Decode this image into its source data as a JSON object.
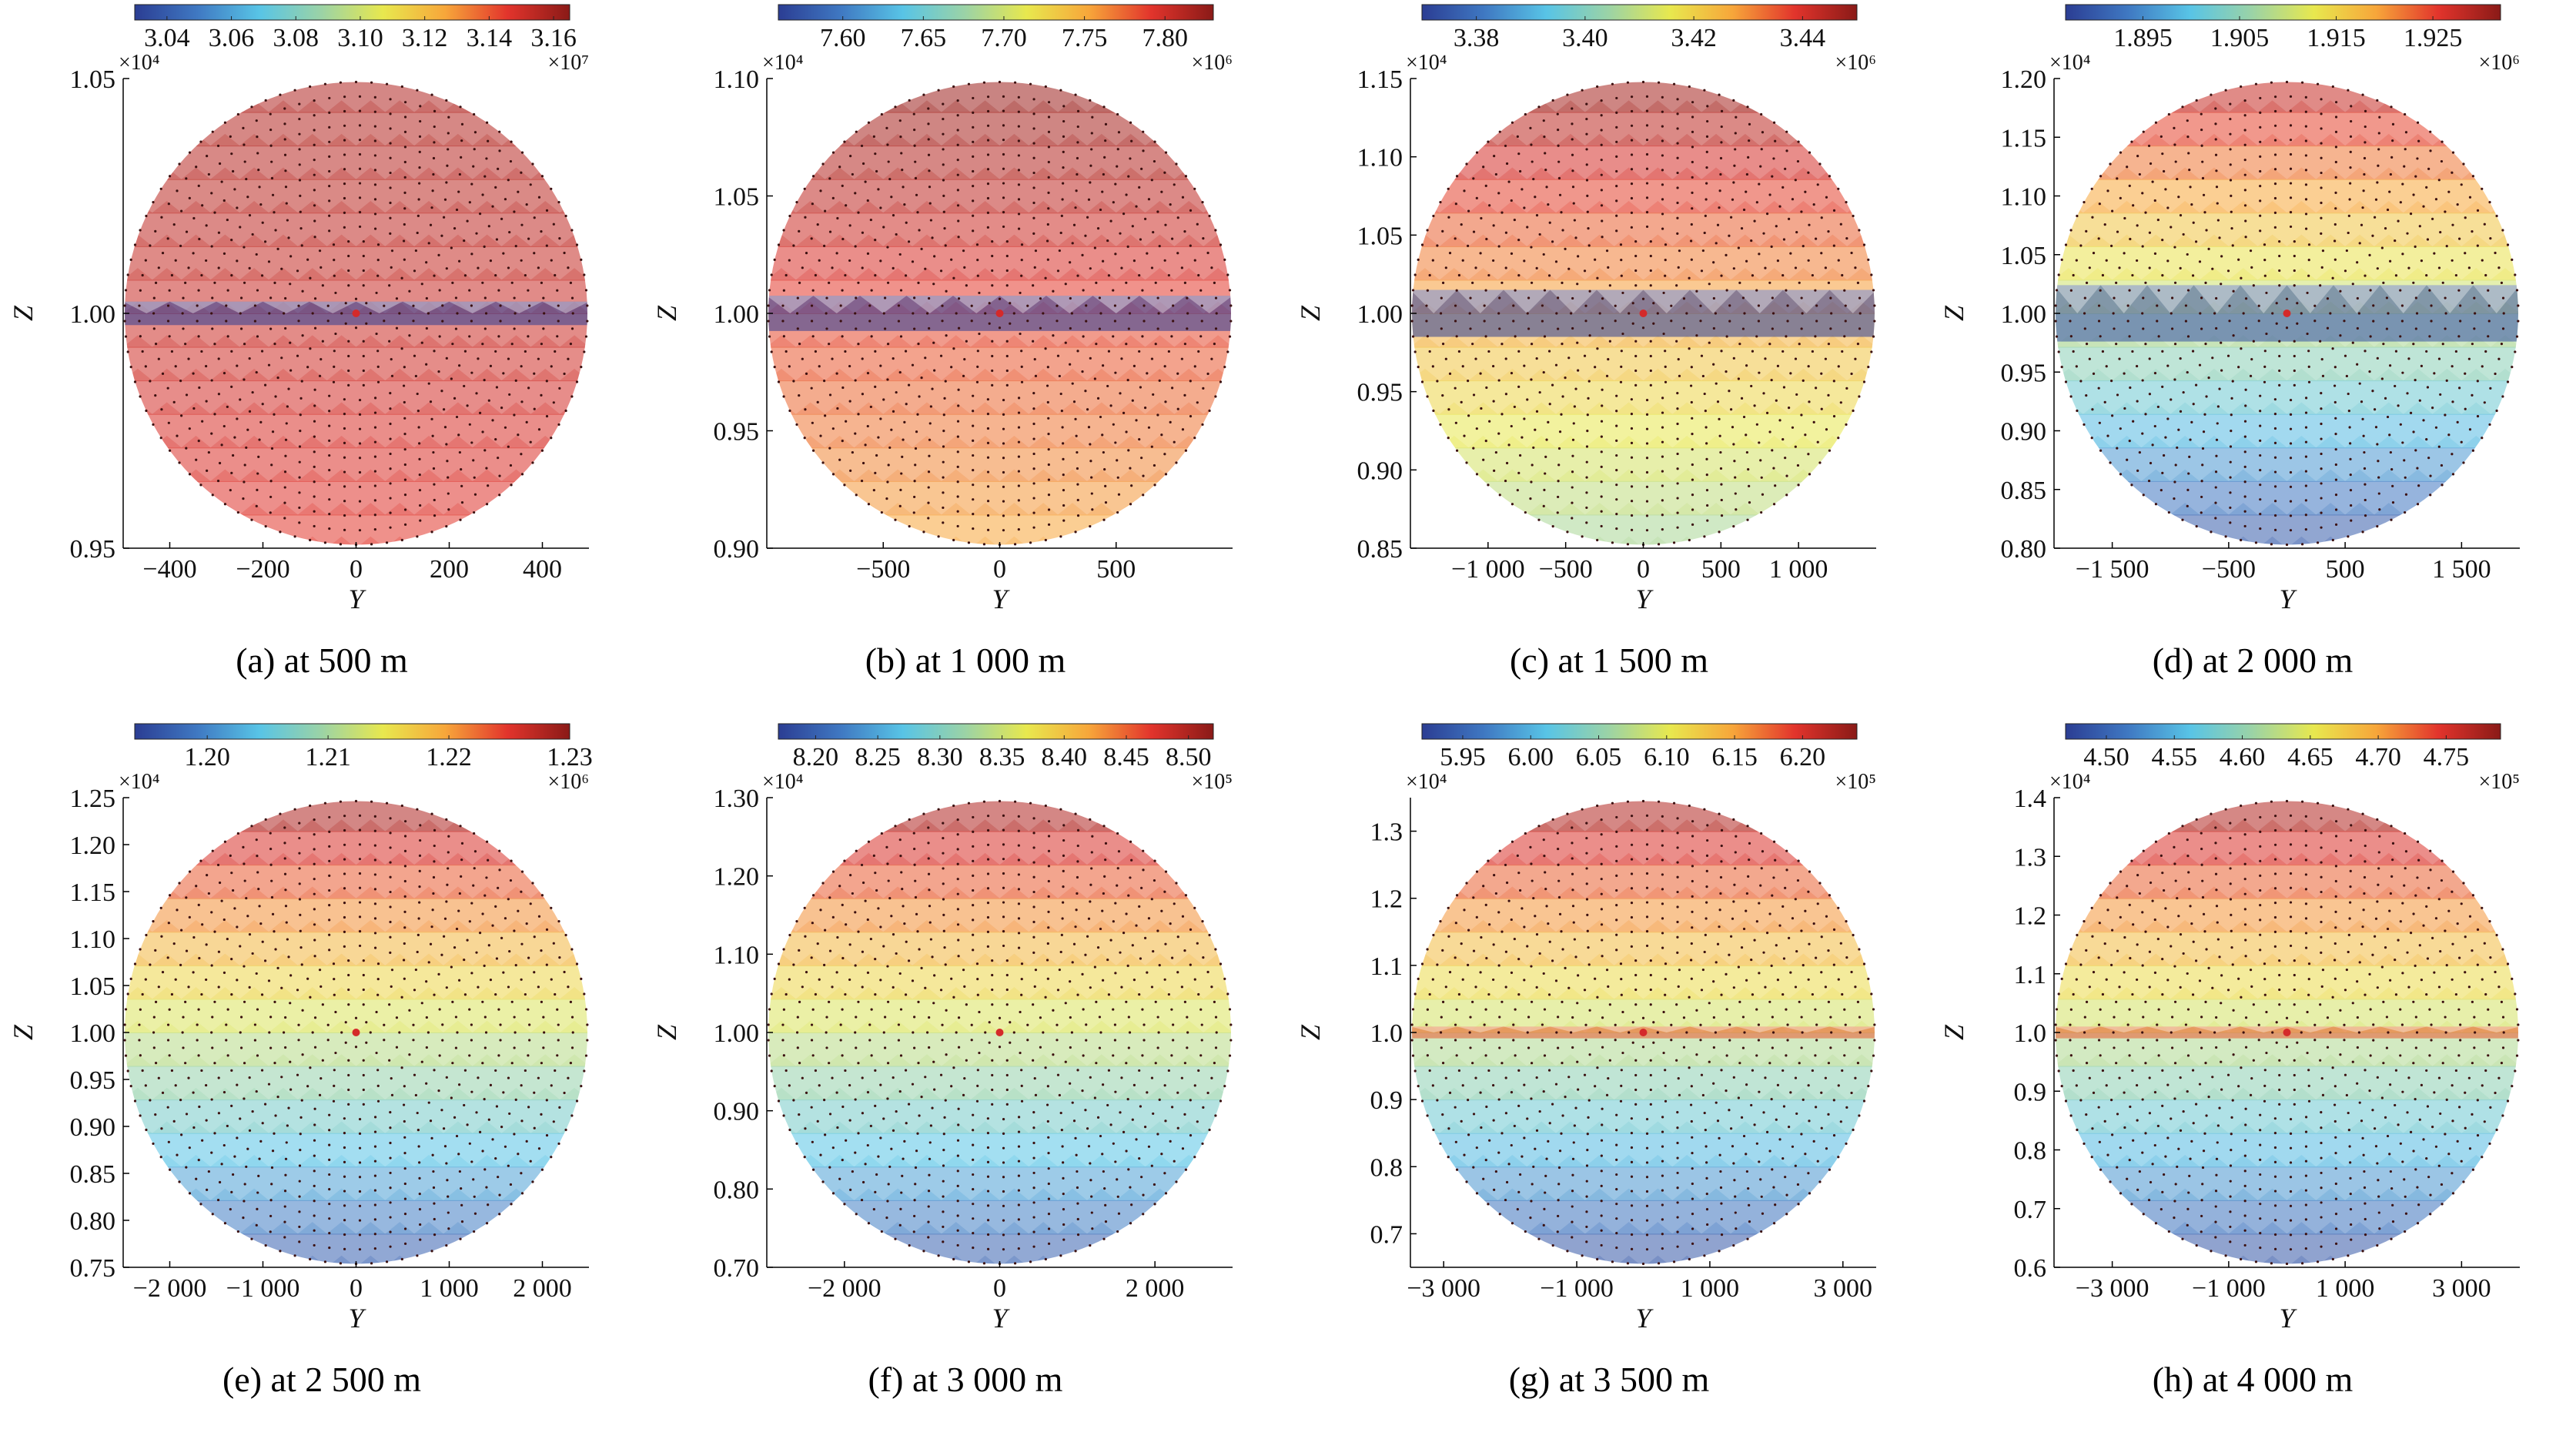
{
  "figure": {
    "colormap": [
      "#2b3d93",
      "#3f78c2",
      "#58c4e6",
      "#9bd3a6",
      "#e8e84e",
      "#f7a63a",
      "#e2342c",
      "#8a1a17"
    ],
    "panel_outline_color": "#000000",
    "node_color": "#3b1010",
    "center_marker_color": "#d42a2a"
  },
  "chart_data": [
    {
      "type": "heatmap",
      "caption": "(a) at 500 m",
      "xlabel": "Y",
      "ylabel": "Z",
      "xlim": [
        -500,
        500
      ],
      "ylim": [
        0.95,
        1.05
      ],
      "x_ticks": [
        -400,
        -200,
        0,
        200,
        400
      ],
      "x_tick_labels": [
        "−400",
        "−200",
        "0",
        "200",
        "400"
      ],
      "y_ticks": [
        0.95,
        1.0,
        1.05
      ],
      "y_tick_labels": [
        "0.95",
        "1.00",
        "1.05"
      ],
      "y_multiplier": "×10⁴",
      "colorbar": {
        "range": [
          3.03,
          3.165
        ],
        "ticks": [
          3.04,
          3.06,
          3.08,
          3.1,
          3.12,
          3.14,
          3.16
        ],
        "tick_labels": [
          "3.04",
          "3.06",
          "3.08",
          "3.10",
          "3.12",
          "3.14",
          "3.16"
        ],
        "multiplier": "×10⁷"
      },
      "field": {
        "top": 3.157,
        "bottom": 3.145,
        "band_halfwidth": 0.05,
        "band_value": 3.03
      },
      "center": [
        0,
        1.0
      ]
    },
    {
      "type": "heatmap",
      "caption": "(b) at 1 000 m",
      "xlabel": "Y",
      "ylabel": "Z",
      "xlim": [
        -1000,
        1000
      ],
      "ylim": [
        0.9,
        1.1
      ],
      "x_ticks": [
        -500,
        0,
        500
      ],
      "x_tick_labels": [
        "−500",
        "0",
        "500"
      ],
      "y_ticks": [
        0.9,
        0.95,
        1.0,
        1.05,
        1.1
      ],
      "y_tick_labels": [
        "0.90",
        "0.95",
        "1.00",
        "1.05",
        "1.10"
      ],
      "y_multiplier": "×10⁴",
      "colorbar": {
        "range": [
          7.56,
          7.83
        ],
        "ticks": [
          7.6,
          7.65,
          7.7,
          7.75,
          7.8
        ],
        "tick_labels": [
          "7.60",
          "7.65",
          "7.70",
          "7.75",
          "7.80"
        ],
        "multiplier": "×10⁶"
      },
      "field": {
        "top": 7.825,
        "bottom": 7.75,
        "band_halfwidth": 0.075,
        "band_value": 7.56
      },
      "center": [
        0,
        1.0
      ]
    },
    {
      "type": "heatmap",
      "caption": "(c) at 1 500 m",
      "xlabel": "Y",
      "ylabel": "Z",
      "xlim": [
        -1500,
        1500
      ],
      "ylim": [
        0.85,
        1.15
      ],
      "x_ticks": [
        -1000,
        -500,
        0,
        500,
        1000
      ],
      "x_tick_labels": [
        "−1 000",
        "−500",
        "0",
        "500",
        "1 000"
      ],
      "y_ticks": [
        0.85,
        0.9,
        0.95,
        1.0,
        1.05,
        1.1,
        1.15
      ],
      "y_tick_labels": [
        "0.85",
        "0.90",
        "0.95",
        "1.00",
        "1.05",
        "1.10",
        "1.15"
      ],
      "y_multiplier": "×10⁴",
      "colorbar": {
        "range": [
          3.37,
          3.45
        ],
        "ticks": [
          3.38,
          3.4,
          3.42,
          3.44
        ],
        "tick_labels": [
          "3.38",
          "3.40",
          "3.42",
          "3.44"
        ],
        "multiplier": "×10⁶"
      },
      "field": {
        "top": 3.448,
        "bottom": 3.405,
        "band_halfwidth": 0.1,
        "band_value": 3.37
      },
      "center": [
        0,
        1.0
      ]
    },
    {
      "type": "heatmap",
      "caption": "(d) at 2 000 m",
      "xlabel": "Y",
      "ylabel": "Z",
      "xlim": [
        -2000,
        2000
      ],
      "ylim": [
        0.8,
        1.2
      ],
      "x_ticks": [
        -1500,
        -500,
        500,
        1500
      ],
      "x_tick_labels": [
        "−1 500",
        "−500",
        "500",
        "1 500"
      ],
      "y_ticks": [
        0.8,
        0.85,
        0.9,
        0.95,
        1.0,
        1.05,
        1.1,
        1.15,
        1.2
      ],
      "y_tick_labels": [
        "0.80",
        "0.85",
        "0.90",
        "0.95",
        "1.00",
        "1.05",
        "1.10",
        "1.15",
        "1.20"
      ],
      "y_multiplier": "×10⁴",
      "colorbar": {
        "range": [
          1.887,
          1.932
        ],
        "ticks": [
          1.895,
          1.905,
          1.915,
          1.925
        ],
        "tick_labels": [
          "1.895",
          "1.905",
          "1.915",
          "1.925"
        ],
        "multiplier": "×10⁶"
      },
      "field": {
        "top": 1.929,
        "bottom": 1.889,
        "band_halfwidth": 0.12,
        "band_value": 1.889
      },
      "center": [
        0,
        1.0
      ]
    },
    {
      "type": "heatmap",
      "caption": "(e) at 2 500 m",
      "xlabel": "Y",
      "ylabel": "Z",
      "xlim": [
        -2500,
        2500
      ],
      "ylim": [
        0.75,
        1.25
      ],
      "x_ticks": [
        -2000,
        -1000,
        0,
        1000,
        2000
      ],
      "x_tick_labels": [
        "−2 000",
        "−1 000",
        "0",
        "1 000",
        "2 000"
      ],
      "y_ticks": [
        0.75,
        0.8,
        0.85,
        0.9,
        0.95,
        1.0,
        1.05,
        1.1,
        1.15,
        1.2,
        1.25
      ],
      "y_tick_labels": [
        "0.75",
        "0.80",
        "0.85",
        "0.90",
        "0.95",
        "1.00",
        "1.05",
        "1.10",
        "1.15",
        "1.20",
        "1.25"
      ],
      "y_multiplier": "×10⁴",
      "colorbar": {
        "range": [
          1.194,
          1.23
        ],
        "ticks": [
          1.2,
          1.21,
          1.22,
          1.23
        ],
        "tick_labels": [
          "1.20",
          "1.21",
          "1.22",
          "1.23"
        ],
        "multiplier": "×10⁶"
      },
      "field": {
        "top": 1.229,
        "bottom": 1.196,
        "band_halfwidth": 0,
        "band_value": 1.196
      },
      "center": [
        0,
        1.0
      ]
    },
    {
      "type": "heatmap",
      "caption": "(f) at 3 000 m",
      "xlabel": "Y",
      "ylabel": "Z",
      "xlim": [
        -3000,
        3000
      ],
      "ylim": [
        0.7,
        1.3
      ],
      "x_ticks": [
        -2000,
        0,
        2000
      ],
      "x_tick_labels": [
        "−2 000",
        "0",
        "2 000"
      ],
      "y_ticks": [
        0.7,
        0.8,
        0.9,
        1.0,
        1.1,
        1.2,
        1.3
      ],
      "y_tick_labels": [
        "0.70",
        "0.80",
        "0.90",
        "1.00",
        "1.10",
        "1.20",
        "1.30"
      ],
      "y_multiplier": "×10⁴",
      "colorbar": {
        "range": [
          8.17,
          8.52
        ],
        "ticks": [
          8.2,
          8.25,
          8.3,
          8.35,
          8.4,
          8.45,
          8.5
        ],
        "tick_labels": [
          "8.20",
          "8.25",
          "8.30",
          "8.35",
          "8.40",
          "8.45",
          "8.50"
        ],
        "multiplier": "×10⁵"
      },
      "field": {
        "top": 8.51,
        "bottom": 8.19,
        "band_halfwidth": 0,
        "band_value": 8.19
      },
      "center": [
        0,
        1.0
      ]
    },
    {
      "type": "heatmap",
      "caption": "(g) at 3 500 m",
      "xlabel": "Y",
      "ylabel": "Z",
      "xlim": [
        -3500,
        3500
      ],
      "ylim": [
        0.65,
        1.35
      ],
      "x_ticks": [
        -3000,
        -1000,
        1000,
        3000
      ],
      "x_tick_labels": [
        "−3 000",
        "−1 000",
        "1 000",
        "3 000"
      ],
      "y_ticks": [
        0.7,
        0.8,
        0.9,
        1.0,
        1.1,
        1.2,
        1.3
      ],
      "y_tick_labels": [
        "0.7",
        "0.8",
        "0.9",
        "1.0",
        "1.1",
        "1.2",
        "1.3"
      ],
      "y_multiplier": "×10⁴",
      "colorbar": {
        "range": [
          5.92,
          6.24
        ],
        "ticks": [
          5.95,
          6.0,
          6.05,
          6.1,
          6.15,
          6.2
        ],
        "tick_labels": [
          "5.95",
          "6.00",
          "6.05",
          "6.10",
          "6.15",
          "6.20"
        ],
        "multiplier": "×10⁵"
      },
      "field": {
        "top": 6.23,
        "bottom": 5.93,
        "band_halfwidth": 0.025,
        "band_value": 6.18
      },
      "center": [
        0,
        1.0
      ]
    },
    {
      "type": "heatmap",
      "caption": "(h) at 4 000 m",
      "xlabel": "Y",
      "ylabel": "Z",
      "xlim": [
        -4000,
        4000
      ],
      "ylim": [
        0.6,
        1.4
      ],
      "x_ticks": [
        -3000,
        -1000,
        1000,
        3000
      ],
      "x_tick_labels": [
        "−3 000",
        "−1 000",
        "1 000",
        "3 000"
      ],
      "y_ticks": [
        0.6,
        0.7,
        0.8,
        0.9,
        1.0,
        1.1,
        1.2,
        1.3,
        1.4
      ],
      "y_tick_labels": [
        "0.6",
        "0.7",
        "0.8",
        "0.9",
        "1.0",
        "1.1",
        "1.2",
        "1.3",
        "1.4"
      ],
      "y_multiplier": "×10⁴",
      "colorbar": {
        "range": [
          4.47,
          4.79
        ],
        "ticks": [
          4.5,
          4.55,
          4.6,
          4.65,
          4.7,
          4.75
        ],
        "tick_labels": [
          "4.50",
          "4.55",
          "4.60",
          "4.65",
          "4.70",
          "4.75"
        ],
        "multiplier": "×10⁵"
      },
      "field": {
        "top": 4.78,
        "bottom": 4.48,
        "band_halfwidth": 0.025,
        "band_value": 4.73
      },
      "center": [
        0,
        1.0
      ]
    }
  ]
}
